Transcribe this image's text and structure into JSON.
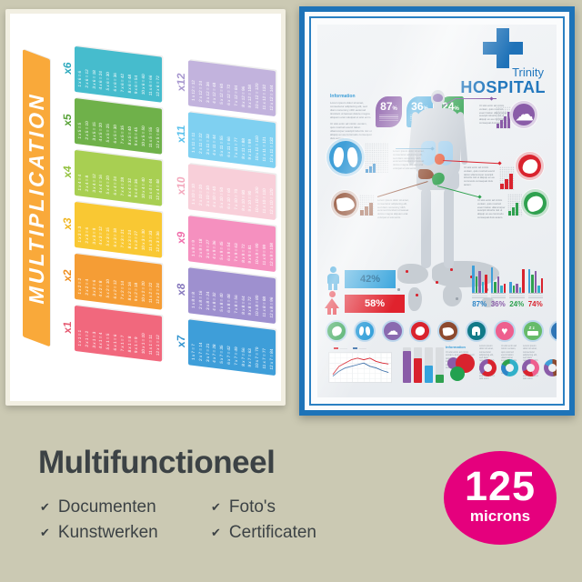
{
  "background_color": "#cbc9b3",
  "left_poster": {
    "title": "MULTIPLICATION",
    "banner_color": "#f9a93a",
    "tables": [
      {
        "label": "x1",
        "bar_color": "#f1687d",
        "label_color": "#e55a71",
        "equations": [
          "1 x 1 = 1",
          "2 x 1 = 2",
          "3 x 1 = 3",
          "4 x 1 = 4",
          "5 x 1 = 5",
          "6 x 1 = 6",
          "7 x 1 = 7",
          "8 x 1 = 8",
          "9 x 1 = 9",
          "10 x 1 = 10",
          "11 x 1 = 11",
          "12 x 1 = 12"
        ]
      },
      {
        "label": "x2",
        "bar_color": "#f59d35",
        "label_color": "#ef8f21",
        "equations": [
          "1 x 2 = 2",
          "2 x 2 = 4",
          "3 x 2 = 6",
          "4 x 2 = 8",
          "5 x 2 = 10",
          "6 x 2 = 12",
          "7 x 2 = 14",
          "8 x 2 = 16",
          "9 x 2 = 18",
          "10 x 2 = 20",
          "11 x 2 = 22",
          "12 x 2 = 24"
        ]
      },
      {
        "label": "x3",
        "bar_color": "#f9c833",
        "label_color": "#f0b51e",
        "equations": [
          "1 x 3 = 3",
          "2 x 3 = 6",
          "3 x 3 = 9",
          "4 x 3 = 12",
          "5 x 3 = 15",
          "6 x 3 = 18",
          "7 x 3 = 21",
          "8 x 3 = 24",
          "9 x 3 = 27",
          "10 x 3 = 30",
          "11 x 3 = 33",
          "12 x 3 = 36"
        ]
      },
      {
        "label": "x4",
        "bar_color": "#a8cf52",
        "label_color": "#93c13f",
        "equations": [
          "1 x 4 = 4",
          "2 x 4 = 8",
          "3 x 4 = 12",
          "4 x 4 = 16",
          "5 x 4 = 20",
          "6 x 4 = 24",
          "7 x 4 = 28",
          "8 x 4 = 32",
          "9 x 4 = 36",
          "10 x 4 = 40",
          "11 x 4 = 44",
          "12 x 4 = 48"
        ]
      },
      {
        "label": "x5",
        "bar_color": "#6fb14a",
        "label_color": "#58a238",
        "equations": [
          "1 x 5 = 5",
          "2 x 5 = 10",
          "3 x 5 = 15",
          "4 x 5 = 20",
          "5 x 5 = 25",
          "6 x 5 = 30",
          "7 x 5 = 35",
          "8 x 5 = 40",
          "9 x 5 = 45",
          "10 x 5 = 50",
          "11 x 5 = 55",
          "12 x 5 = 60"
        ]
      },
      {
        "label": "x6",
        "bar_color": "#46bccd",
        "label_color": "#2eaabe",
        "equations": [
          "1 x 6 = 6",
          "2 x 6 = 12",
          "3 x 6 = 18",
          "4 x 6 = 24",
          "5 x 6 = 30",
          "6 x 6 = 36",
          "7 x 6 = 42",
          "8 x 6 = 48",
          "9 x 6 = 54",
          "10 x 6 = 60",
          "11 x 6 = 66",
          "12 x 6 = 72"
        ]
      },
      {
        "label": "x7",
        "bar_color": "#3e9ed9",
        "label_color": "#2f93cf",
        "equations": [
          "1 x 7 = 7",
          "2 x 7 = 14",
          "3 x 7 = 21",
          "4 x 7 = 28",
          "5 x 7 = 35",
          "6 x 7 = 42",
          "7 x 7 = 49",
          "8 x 7 = 56",
          "9 x 7 = 63",
          "10 x 7 = 70",
          "11 x 7 = 77",
          "12 x 7 = 84"
        ]
      },
      {
        "label": "x8",
        "bar_color": "#9e90cf",
        "label_color": "#8678bd",
        "equations": [
          "1 x 8 = 8",
          "2 x 8 = 16",
          "3 x 8 = 24",
          "4 x 8 = 32",
          "5 x 8 = 40",
          "6 x 8 = 48",
          "7 x 8 = 56",
          "8 x 8 = 64",
          "9 x 8 = 72",
          "10 x 8 = 80",
          "11 x 8 = 88",
          "12 x 8 = 96"
        ]
      },
      {
        "label": "x9",
        "bar_color": "#f590bf",
        "label_color": "#f06fac",
        "equations": [
          "1 x 9 = 9",
          "2 x 9 = 18",
          "3 x 9 = 27",
          "4 x 9 = 36",
          "5 x 9 = 45",
          "6 x 9 = 54",
          "7 x 9 = 63",
          "8 x 9 = 72",
          "9 x 9 = 81",
          "10 x 9 = 90",
          "11 x 9 = 99",
          "12 x 9 = 108"
        ]
      },
      {
        "label": "x10",
        "bar_color": "#f8cfd9",
        "label_color": "#f3a8bc",
        "equations": [
          "1 x 10 = 10",
          "2 x 10 = 20",
          "3 x 10 = 30",
          "4 x 10 = 40",
          "5 x 10 = 50",
          "6 x 10 = 60",
          "7 x 10 = 70",
          "8 x 10 = 80",
          "9 x 10 = 90",
          "10 x 10 = 100",
          "11 x 10 = 110",
          "12 x 10 = 120"
        ]
      },
      {
        "label": "x11",
        "bar_color": "#7fd0f1",
        "label_color": "#59c1ec",
        "equations": [
          "1 x 11 = 11",
          "2 x 11 = 22",
          "3 x 11 = 33",
          "4 x 11 = 44",
          "5 x 11 = 55",
          "6 x 11 = 66",
          "7 x 11 = 77",
          "8 x 11 = 88",
          "9 x 11 = 99",
          "10 x 11 = 110",
          "11 x 11 = 121",
          "12 x 11 = 132"
        ]
      },
      {
        "label": "x12",
        "bar_color": "#c2b3dd",
        "label_color": "#a797cf",
        "equations": [
          "1 x 12 = 12",
          "2 x 12 = 24",
          "3 x 12 = 36",
          "4 x 12 = 48",
          "5 x 12 = 60",
          "6 x 12 = 72",
          "7 x 12 = 84",
          "8 x 12 = 96",
          "9 x 12 = 108",
          "10 x 12 = 120",
          "11 x 12 = 132",
          "12 x 12 = 144"
        ]
      }
    ]
  },
  "right_poster": {
    "brand": {
      "line1": "Trinity",
      "line2": "HOSPITAL",
      "cross_color": "#1f72b8",
      "text_color": "#2277bd"
    },
    "frame_color": "#1e73b8",
    "info_heading": "Information",
    "lorem_a": "Lorem ipsum dolor sit amet, consectetur adipiscing elit, sed diam nonummy nibh euismod tincidunt ut laoreet dolore magna aliquam erat volutpat ut wisi enim.",
    "lorem_b": "Ut wisi enim ad minim veniam, quis nostrud exerci tation ullamcorper suscipit lobortis nisl ut aliquip ex ea commodo consequat duis autem.",
    "badges": [
      {
        "value": "87",
        "unit": "%",
        "color": "#8a5ca8"
      },
      {
        "value": "36",
        "unit": "%",
        "color": "#2b9cd8"
      },
      {
        "value": "24",
        "unit": "%",
        "color": "#2fa14f"
      }
    ],
    "callouts": [
      {
        "organ": "brain",
        "color": "#8a5ca8"
      },
      {
        "organ": "lungs",
        "color": "#3f9fd8"
      },
      {
        "organ": "heart",
        "color": "#d9232e"
      },
      {
        "organ": "liver",
        "color": "#8d4a2f"
      },
      {
        "organ": "stomach",
        "color": "#2fa14f"
      }
    ],
    "gender_stats": [
      {
        "gender": "male",
        "value": "42%",
        "box_color": "#35a3dc",
        "icon_color": "#2b9cd8"
      },
      {
        "gender": "female",
        "value": "58%",
        "box_color": "#e0222d",
        "icon_color": "#e0222d"
      }
    ],
    "region_stats": [
      {
        "label": "87%",
        "color": "#2e86c8",
        "bars": [
          30,
          18,
          24,
          12,
          20
        ]
      },
      {
        "label": "36%",
        "color": "#8a5ca8",
        "bars": [
          28,
          12,
          18,
          8,
          10
        ]
      },
      {
        "label": "24%",
        "color": "#2fa14f",
        "bars": [
          12,
          8,
          10,
          6,
          26
        ]
      },
      {
        "label": "74%",
        "color": "#d9232e",
        "bars": [
          26,
          20,
          24,
          8,
          16
        ]
      }
    ],
    "bar_palette": [
      "#3f9fd8",
      "#2fa14f",
      "#8a5ca8",
      "#31b0c9",
      "#d9232e"
    ],
    "organ_row": [
      {
        "icon": "stomach",
        "color": "#2fa14f"
      },
      {
        "icon": "lungs",
        "color": "#2b9cd8"
      },
      {
        "icon": "brain",
        "color": "#8a6bb0"
      },
      {
        "icon": "heart-organ",
        "color": "#d9232e"
      },
      {
        "icon": "liver",
        "color": "#8d4a2f"
      },
      {
        "icon": "tooth",
        "color": "#117a88"
      },
      {
        "icon": "heart",
        "color": "#ee5f8e"
      },
      {
        "icon": "sleep",
        "color": "#66bb6a"
      },
      {
        "icon": "apple",
        "color": "#2e75b5"
      }
    ],
    "line_chart": {
      "series": [
        {
          "name": "series-red",
          "color": "#d9232e",
          "values": [
            2,
            4.5,
            5.5,
            6.5,
            7,
            6.5,
            7,
            6,
            5.5,
            5.2
          ]
        },
        {
          "name": "series-blue",
          "color": "#3a6ea8",
          "values": [
            1.5,
            3,
            4,
            4.5,
            5,
            5.5,
            4.5,
            4,
            3.2,
            2.6
          ]
        }
      ]
    },
    "gauges": [
      {
        "color": "#8a5ca8",
        "pct": 90
      },
      {
        "color": "#d9232e",
        "pct": 70
      },
      {
        "color": "#35a3dc",
        "pct": 50
      },
      {
        "color": "#2fa14f",
        "pct": 22
      }
    ],
    "bubbles": [
      {
        "color": "#8a5ca8",
        "size": 13
      },
      {
        "color": "#d9232e",
        "size": 21
      },
      {
        "color": "#23a14f",
        "size": 16
      }
    ],
    "donuts": [
      {
        "segments": [
          [
            "#d9232e",
            62
          ],
          [
            "#8a5ca8",
            38
          ]
        ]
      },
      {
        "segments": [
          [
            "#31b0c9",
            55
          ],
          [
            "#2e86c8",
            27
          ],
          [
            "#2fa14f",
            18
          ]
        ]
      },
      {
        "segments": [
          [
            "#ee5f8e",
            45
          ],
          [
            "#d9232e",
            23
          ],
          [
            "#8a5ca8",
            32
          ]
        ]
      },
      {
        "segments": [
          [
            "#8d4a2f",
            48
          ],
          [
            "#8a5ca8",
            34
          ],
          [
            "#3f9fd8",
            18
          ]
        ]
      }
    ]
  },
  "bottom": {
    "heading": "Multifunctioneel",
    "check_glyph": "✔",
    "features": [
      "Documenten",
      "Foto's",
      "Kunstwerken",
      "Certificaten"
    ],
    "badge": {
      "value": "125",
      "unit": "microns",
      "color": "#e5007d"
    },
    "text_color": "#3c4245"
  }
}
